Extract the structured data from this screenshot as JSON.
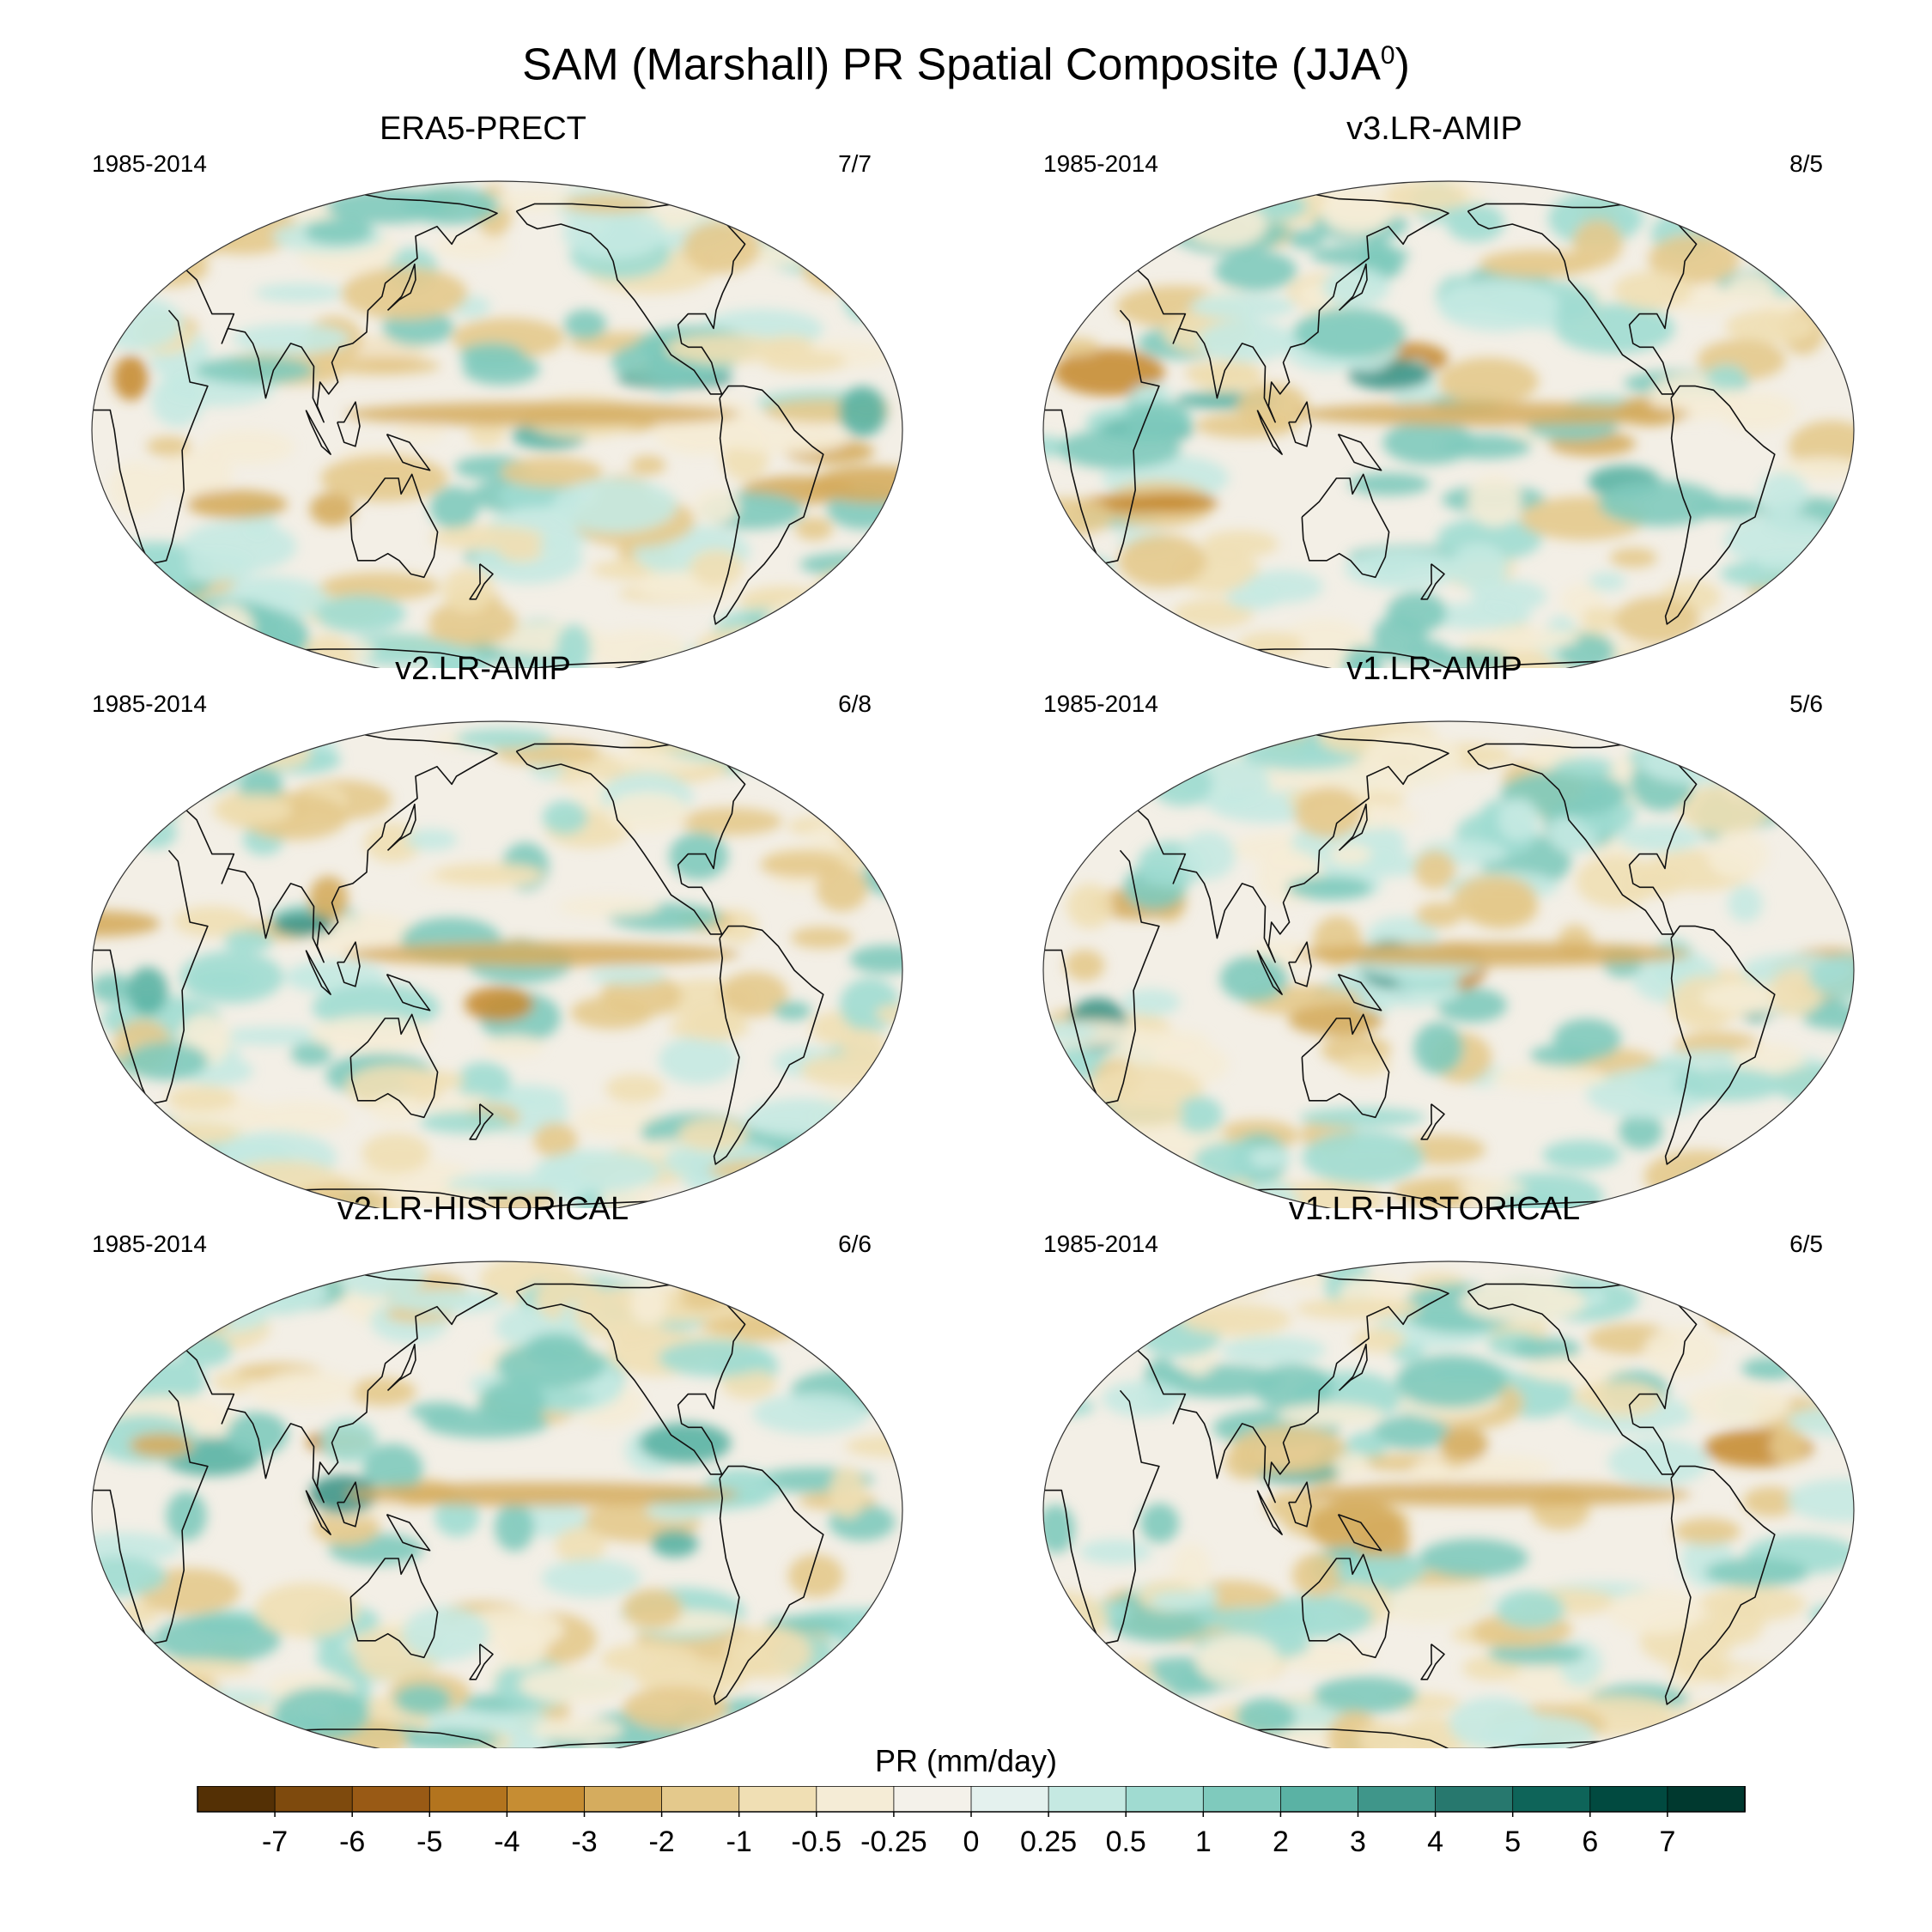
{
  "title": {
    "main": "SAM (Marshall) PR Spatial Composite (JJA",
    "sup": "0",
    "close": ")"
  },
  "panels": [
    {
      "name": "ERA5-PRECT",
      "period": "1985-2014",
      "counts": "7/7",
      "field": "0"
    },
    {
      "name": "v3.LR-AMIP",
      "period": "1985-2014",
      "counts": "8/5",
      "field": "1"
    },
    {
      "name": "v2.LR-AMIP",
      "period": "1985-2014",
      "counts": "6/8",
      "field": "2"
    },
    {
      "name": "v1.LR-AMIP",
      "period": "1985-2014",
      "counts": "5/6",
      "field": "3"
    },
    {
      "name": "v2.LR-HISTORICAL",
      "period": "1985-2014",
      "counts": "6/6",
      "field": "4"
    },
    {
      "name": "v1.LR-HISTORICAL",
      "period": "1985-2014",
      "counts": "6/5",
      "field": "5"
    }
  ],
  "colorbar": {
    "label": "PR (mm/day)",
    "ticks": [
      "-7",
      "-6",
      "-5",
      "-4",
      "-3",
      "-2",
      "-1",
      "-0.5",
      "-0.25",
      "0",
      "0.25",
      "0.5",
      "1",
      "2",
      "3",
      "4",
      "5",
      "6",
      "7"
    ],
    "colors": [
      "#543005",
      "#7e4a0d",
      "#995a15",
      "#b3741e",
      "#c68d33",
      "#d5ac5e",
      "#e4c98c",
      "#f0dfb4",
      "#f5ecd6",
      "#f4f1ea",
      "#e4f1ee",
      "#c5e9e2",
      "#a0dbd1",
      "#7fcabd",
      "#5ab2a4",
      "#3f968a",
      "#27786e",
      "#0e6459",
      "#014a40",
      "#00392f"
    ]
  },
  "map_style": {
    "ocean_bg": "#f3efe6",
    "outline": "#333333",
    "coast": "#111111"
  }
}
